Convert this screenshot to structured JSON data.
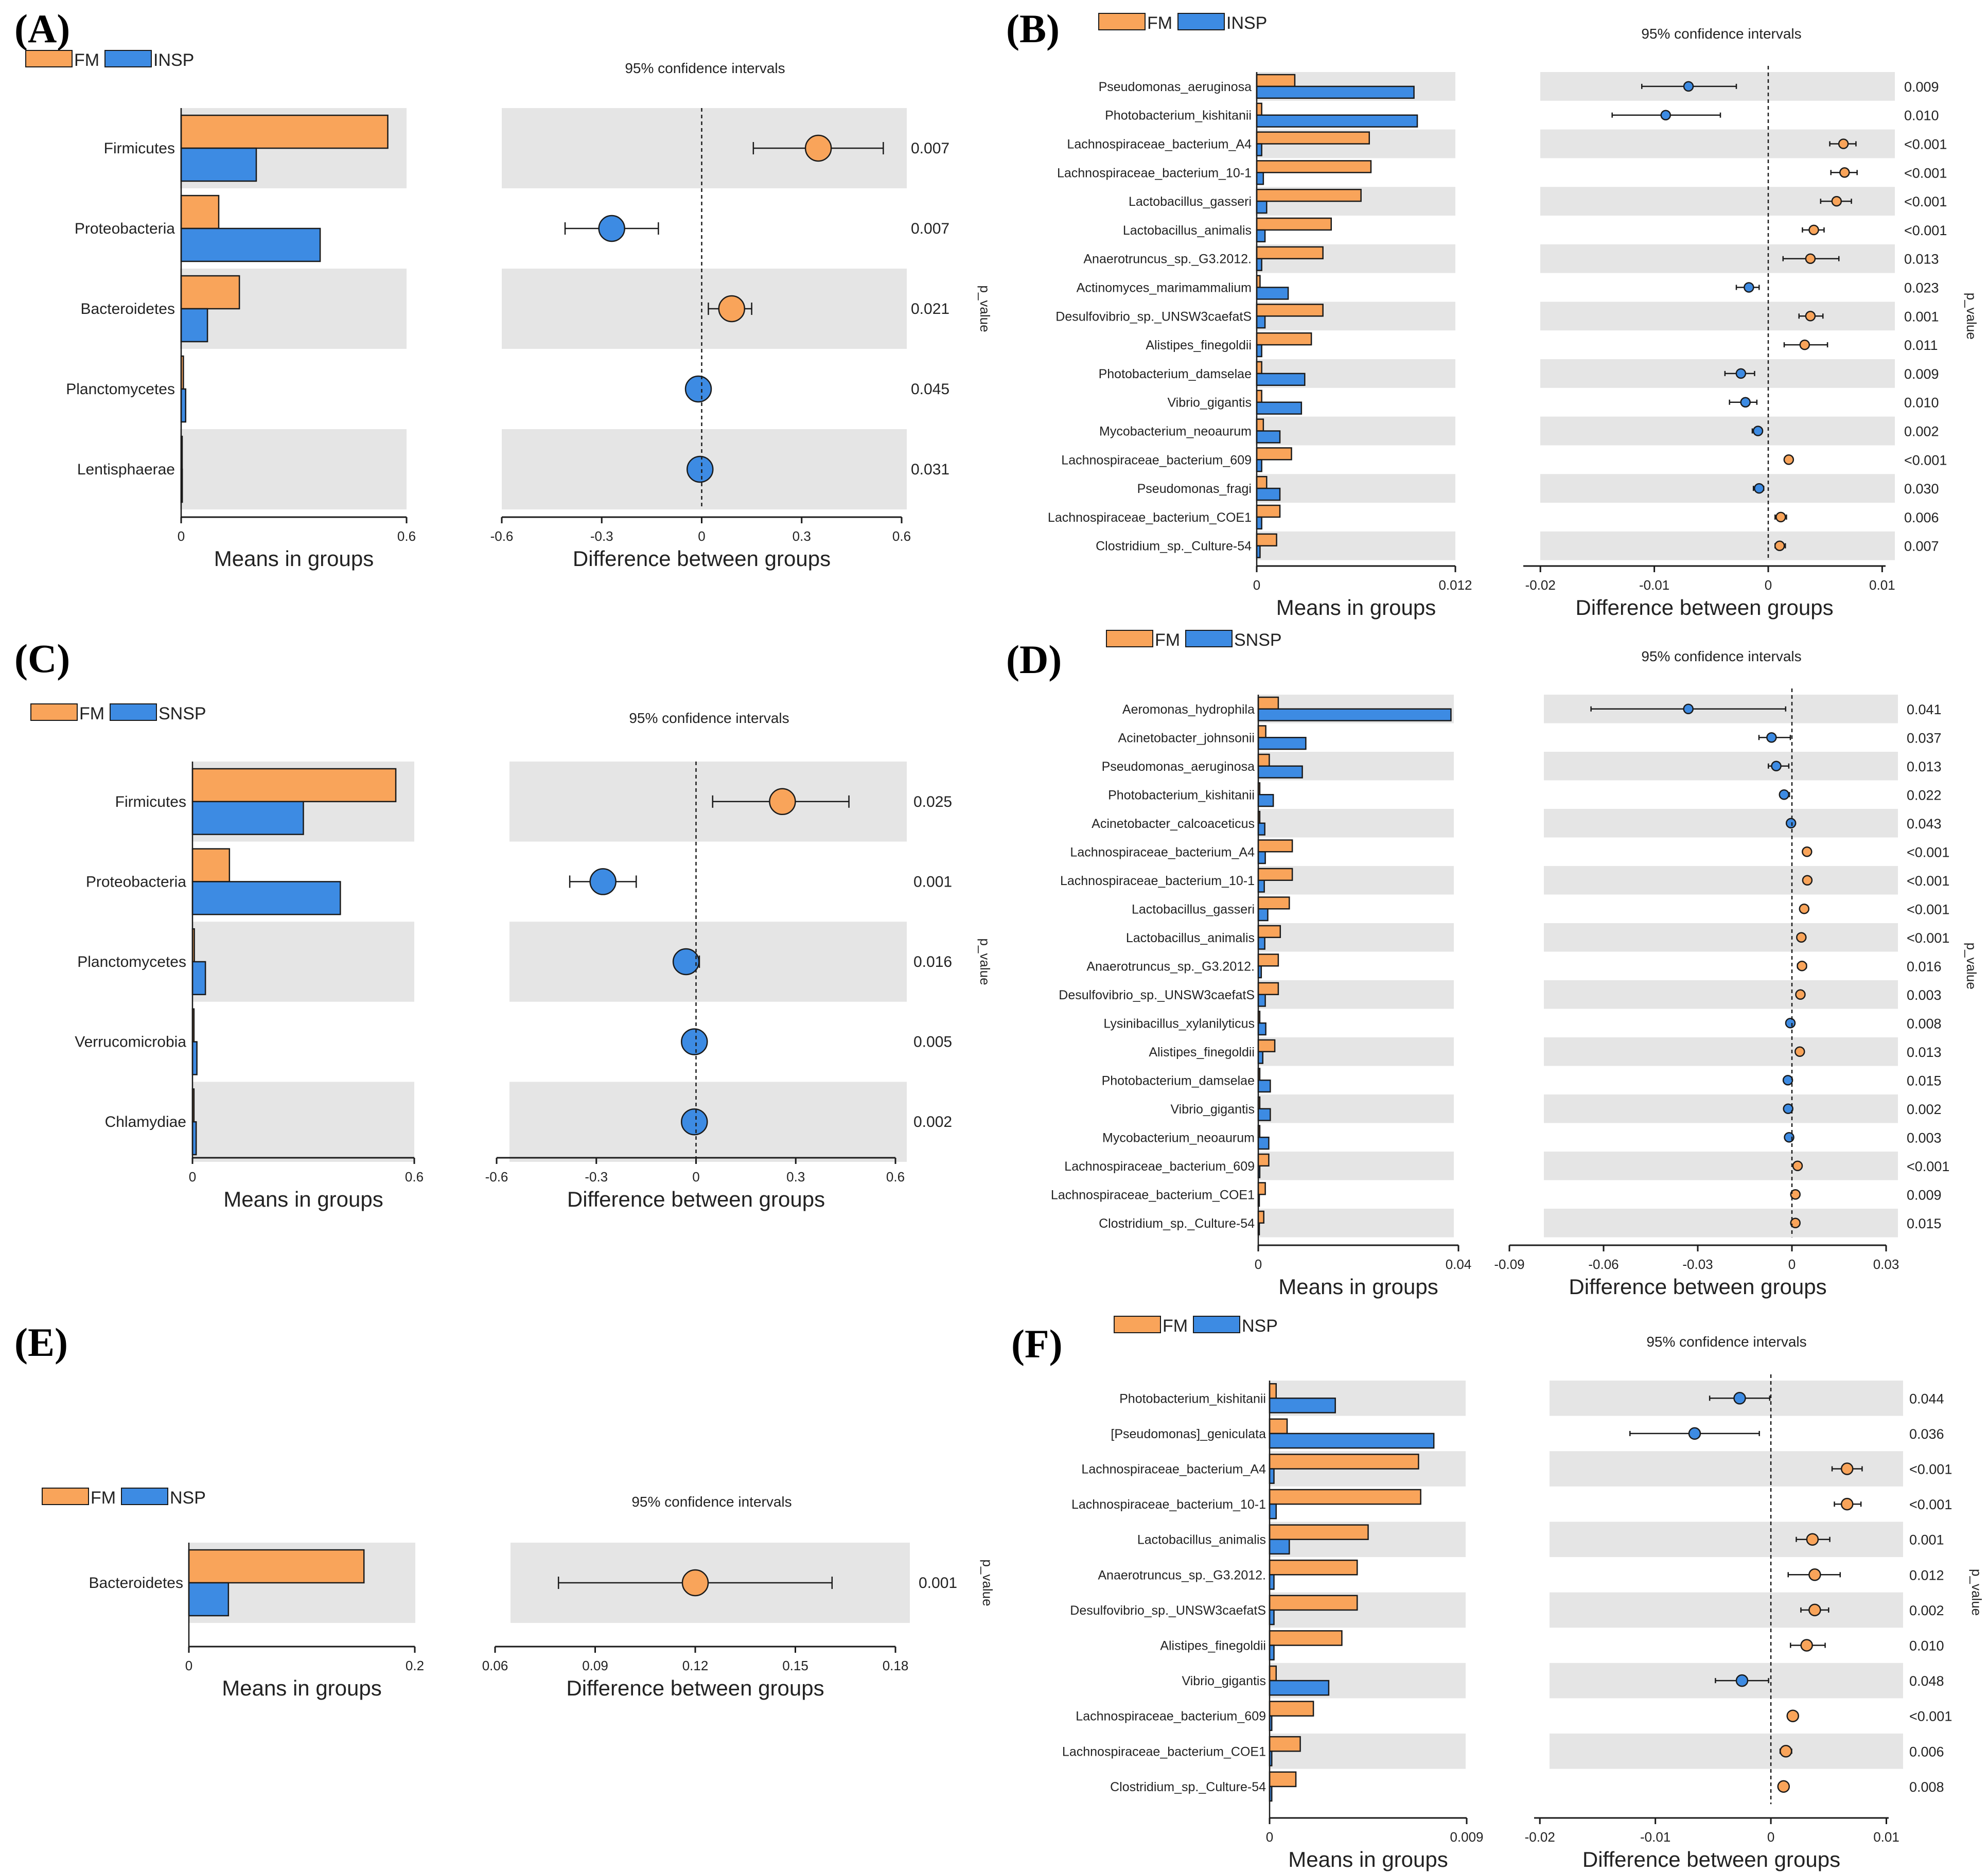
{
  "colors": {
    "fm": "#F9A45A",
    "group": "#3D8BE3",
    "stripe": "#E5E5E5",
    "border": "#1a1a1a"
  },
  "common": {
    "means_axis_title": "Means in groups",
    "diff_axis_title": "Difference between groups",
    "ci_title": "95% confidence intervals",
    "pvalue_label": "p_value"
  },
  "chart_data": [
    {
      "id": "A",
      "label": "(A)",
      "type": "bar",
      "legend": [
        "FM",
        "INSP"
      ],
      "categories": [
        "Firmicutes",
        "Proteobacteria",
        "Bacteroidetes",
        "Planctomycetes",
        "Lentisphaerae"
      ],
      "series": [
        {
          "name": "FM",
          "values": [
            0.55,
            0.1,
            0.155,
            0.006,
            0.002
          ]
        },
        {
          "name": "INSP",
          "values": [
            0.2,
            0.37,
            0.07,
            0.012,
            0.003
          ]
        }
      ],
      "means_ticks": [
        "0",
        "0.6"
      ],
      "means_range": [
        0,
        0.6
      ],
      "diff_range": [
        -0.6,
        0.6
      ],
      "diff_ticks": [
        "-0.6",
        "-0.3",
        "0",
        "0.3",
        "0.6"
      ],
      "diff_tick_values": [
        -0.6,
        -0.3,
        0,
        0.3,
        0.6
      ],
      "diff": [
        0.35,
        -0.27,
        0.09,
        -0.01,
        -0.005
      ],
      "ci": [
        [
          0.155,
          0.545
        ],
        [
          -0.41,
          -0.13
        ],
        [
          0.02,
          0.15
        ],
        [
          -0.03,
          0.01
        ],
        [
          -0.02,
          0.01
        ]
      ],
      "winner": [
        "FM",
        "INSP",
        "FM",
        "INSP",
        "INSP"
      ],
      "p_values": [
        "0.007",
        "0.007",
        "0.021",
        "0.045",
        "0.031"
      ]
    },
    {
      "id": "B",
      "label": "(B)",
      "type": "bar",
      "legend": [
        "FM",
        "INSP"
      ],
      "categories": [
        "Pseudomonas_aeruginosa",
        "Photobacterium_kishitanii",
        "Lachnospiraceae_bacterium_A4",
        "Lachnospiraceae_bacterium_10-1",
        "Lactobacillus_gasseri",
        "Lactobacillus_animalis",
        "Anaerotruncus_sp._G3.2012.",
        "Actinomyces_marimammalium",
        "Desulfovibrio_sp._UNSW3caefatS",
        "Alistipes_finegoldii",
        "Photobacterium_damselae",
        "Vibrio_gigantis",
        "Mycobacterium_neoaurum",
        "Lachnospiraceae_bacterium_609",
        "Pseudomonas_fragi",
        "Lachnospiraceae_bacterium_COE1",
        "Clostridium_sp._Culture-54"
      ],
      "series": [
        {
          "name": "FM",
          "values": [
            0.0023,
            0.0003,
            0.0068,
            0.0069,
            0.0063,
            0.0045,
            0.004,
            0.0002,
            0.004,
            0.0033,
            0.0003,
            0.0003,
            0.0004,
            0.0021,
            0.0006,
            0.0014,
            0.0012
          ]
        },
        {
          "name": "INSP",
          "values": [
            0.0095,
            0.0097,
            0.0003,
            0.0004,
            0.0006,
            0.0005,
            0.0003,
            0.0019,
            0.0005,
            0.0003,
            0.0029,
            0.0027,
            0.0014,
            0.0003,
            0.0014,
            0.0003,
            0.0002
          ]
        }
      ],
      "means_ticks": [
        "0",
        "0.012"
      ],
      "means_range": [
        0,
        0.012
      ],
      "diff_range": [
        -0.0215,
        0.0103
      ],
      "diff_ticks": [
        "-0.02",
        "-0.01",
        "0",
        "0.01"
      ],
      "diff_tick_values": [
        -0.02,
        -0.01,
        0,
        0.01
      ],
      "diff": [
        -0.007,
        -0.009,
        0.0066,
        0.0067,
        0.006,
        0.004,
        0.0037,
        -0.0017,
        0.0037,
        0.0032,
        -0.0024,
        -0.002,
        -0.0009,
        0.0018,
        -0.0008,
        0.0011,
        0.001
      ],
      "ci": [
        [
          -0.0111,
          -0.0028
        ],
        [
          -0.0137,
          -0.0042
        ],
        [
          0.0054,
          0.0077
        ],
        [
          0.0055,
          0.0078
        ],
        [
          0.0046,
          0.0073
        ],
        [
          0.003,
          0.0049
        ],
        [
          0.0013,
          0.0062
        ],
        [
          -0.0028,
          -0.0008
        ],
        [
          0.0027,
          0.0048
        ],
        [
          0.0014,
          0.0052
        ],
        [
          -0.0038,
          -0.0012
        ],
        [
          -0.0034,
          -0.001
        ],
        [
          -0.0014,
          -0.0006
        ],
        [
          0.0015,
          0.0021
        ],
        [
          -0.0013,
          -0.0004
        ],
        [
          0.0006,
          0.0016
        ],
        [
          0.0006,
          0.0015
        ]
      ],
      "winner": [
        "INSP",
        "INSP",
        "FM",
        "FM",
        "FM",
        "FM",
        "FM",
        "INSP",
        "FM",
        "FM",
        "INSP",
        "INSP",
        "INSP",
        "FM",
        "INSP",
        "FM",
        "FM"
      ],
      "p_values": [
        "0.009",
        "0.010",
        "<0.001",
        "<0.001",
        "<0.001",
        "<0.001",
        "0.013",
        "0.023",
        "0.001",
        "0.011",
        "0.009",
        "0.010",
        "0.002",
        "<0.001",
        "0.030",
        "0.006",
        "0.007"
      ]
    },
    {
      "id": "C",
      "label": "(C)",
      "type": "bar",
      "legend": [
        "FM",
        "SNSP"
      ],
      "categories": [
        "Firmicutes",
        "Proteobacteria",
        "Planctomycetes",
        "Verrucomicrobia",
        "Chlamydiae"
      ],
      "series": [
        {
          "name": "FM",
          "values": [
            0.55,
            0.1,
            0.005,
            0.004,
            0.004
          ]
        },
        {
          "name": "SNSP",
          "values": [
            0.3,
            0.4,
            0.035,
            0.012,
            0.01
          ]
        }
      ],
      "means_ticks": [
        "0",
        "0.6"
      ],
      "means_range": [
        0,
        0.6
      ],
      "diff_range": [
        -0.6,
        0.6
      ],
      "diff_ticks": [
        "-0.6",
        "-0.3",
        "0",
        "0.3",
        "0.6"
      ],
      "diff_tick_values": [
        -0.6,
        -0.3,
        0,
        0.3,
        0.6
      ],
      "diff": [
        0.26,
        -0.28,
        -0.03,
        -0.005,
        -0.005
      ],
      "ci": [
        [
          0.05,
          0.46
        ],
        [
          -0.38,
          -0.18
        ],
        [
          -0.05,
          0.01
        ],
        [
          -0.02,
          0.02
        ],
        [
          -0.02,
          0.02
        ]
      ],
      "winner": [
        "FM",
        "SNSP",
        "SNSP",
        "SNSP",
        "SNSP"
      ],
      "p_values": [
        "0.025",
        "0.001",
        "0.016",
        "0.005",
        "0.002"
      ]
    },
    {
      "id": "D",
      "label": "(D)",
      "type": "bar",
      "legend": [
        "FM",
        "SNSP"
      ],
      "categories": [
        "Aeromonas_hydrophila",
        "Acinetobacter_johnsonii",
        "Pseudomonas_aeruginosa",
        "Photobacterium_kishitanii",
        "Acinetobacter_calcoaceticus",
        "Lachnospiraceae_bacterium_A4",
        "Lachnospiraceae_bacterium_10-1",
        "Lactobacillus_gasseri",
        "Lactobacillus_animalis",
        "Anaerotruncus_sp._G3.2012.",
        "Desulfovibrio_sp._UNSW3caefatS",
        "Lysinibacillus_xylanilyticus",
        "Alistipes_finegoldii",
        "Photobacterium_damselae",
        "Vibrio_gigantis",
        "Mycobacterium_neoaurum",
        "Lachnospiraceae_bacterium_609",
        "Lachnospiraceae_bacterium_COE1",
        "Clostridium_sp._Culture-54"
      ],
      "series": [
        {
          "name": "FM",
          "values": [
            0.004,
            0.0015,
            0.0022,
            0.0003,
            0.0003,
            0.0068,
            0.0068,
            0.0062,
            0.0044,
            0.004,
            0.004,
            0.0003,
            0.0033,
            0.0003,
            0.0003,
            0.0003,
            0.0021,
            0.0014,
            0.0011
          ]
        },
        {
          "name": "SNSP",
          "values": [
            0.0385,
            0.0095,
            0.0088,
            0.003,
            0.0013,
            0.0014,
            0.0012,
            0.0019,
            0.0013,
            0.0006,
            0.0014,
            0.0015,
            0.0009,
            0.0024,
            0.0024,
            0.0021,
            0.0003,
            0.0002,
            0.0002
          ]
        }
      ],
      "means_ticks": [
        "0",
        "0.04"
      ],
      "means_range": [
        0,
        0.04
      ],
      "diff_range": [
        -0.09,
        0.03
      ],
      "diff_ticks": [
        "-0.09",
        "-0.06",
        "-0.03",
        "0",
        "0.03"
      ],
      "diff_tick_values": [
        -0.09,
        -0.06,
        -0.03,
        0,
        0.03
      ],
      "diff": [
        -0.033,
        -0.0065,
        -0.005,
        -0.0025,
        -0.0003,
        0.0048,
        0.0049,
        0.0039,
        0.003,
        0.0032,
        0.0027,
        -0.0005,
        0.0025,
        -0.0013,
        -0.0012,
        -0.0009,
        0.0018,
        0.0011,
        0.0011
      ],
      "ci": [
        [
          -0.064,
          -0.002
        ],
        [
          -0.0105,
          -0.0005
        ],
        [
          -0.0075,
          -0.001
        ],
        [
          -0.0038,
          -0.0008
        ],
        [
          -0.001,
          0.0004
        ],
        [
          0.0037,
          0.0059
        ],
        [
          0.0038,
          0.006
        ],
        [
          0.003,
          0.0048
        ],
        [
          0.002,
          0.004
        ],
        [
          0.0018,
          0.0046
        ],
        [
          0.0017,
          0.0037
        ],
        [
          -0.0012,
          0.0002
        ],
        [
          0.0016,
          0.0034
        ],
        [
          -0.002,
          -0.0006
        ],
        [
          -0.0019,
          -0.0005
        ],
        [
          -0.0016,
          -0.0002
        ],
        [
          0.0013,
          0.0023
        ],
        [
          0.0006,
          0.0016
        ],
        [
          0.0006,
          0.0016
        ]
      ],
      "winner": [
        "SNSP",
        "SNSP",
        "SNSP",
        "SNSP",
        "SNSP",
        "FM",
        "FM",
        "FM",
        "FM",
        "FM",
        "FM",
        "SNSP",
        "FM",
        "SNSP",
        "SNSP",
        "SNSP",
        "FM",
        "FM",
        "FM"
      ],
      "p_values": [
        "0.041",
        "0.037",
        "0.013",
        "0.022",
        "0.043",
        "<0.001",
        "<0.001",
        "<0.001",
        "<0.001",
        "0.016",
        "0.003",
        "0.008",
        "0.013",
        "0.015",
        "0.002",
        "0.003",
        "<0.001",
        "0.009",
        "0.015"
      ]
    },
    {
      "id": "E",
      "label": "(E)",
      "type": "bar",
      "legend": [
        "FM",
        "NSP"
      ],
      "categories": [
        "Bacteroidetes"
      ],
      "series": [
        {
          "name": "FM",
          "values": [
            0.155
          ]
        },
        {
          "name": "NSP",
          "values": [
            0.035
          ]
        }
      ],
      "means_ticks": [
        "0",
        "0.2"
      ],
      "means_range": [
        0,
        0.2
      ],
      "diff_range": [
        0.06,
        0.18
      ],
      "diff_ticks": [
        "0.06",
        "0.09",
        "0.12",
        "0.15",
        "0.18"
      ],
      "diff_tick_values": [
        0.06,
        0.09,
        0.12,
        0.15,
        0.18
      ],
      "diff": [
        0.12
      ],
      "ci": [
        [
          0.079,
          0.161
        ]
      ],
      "winner": [
        "FM"
      ],
      "p_values": [
        "0.001"
      ]
    },
    {
      "id": "F",
      "label": "(F)",
      "type": "bar",
      "legend": [
        "FM",
        "NSP"
      ],
      "categories": [
        "Photobacterium_kishitanii",
        "[Pseudomonas]_geniculata",
        "Lachnospiraceae_bacterium_A4",
        "Lachnospiraceae_bacterium_10-1",
        "Lactobacillus_animalis",
        "Anaerotruncus_sp._G3.2012.",
        "Desulfovibrio_sp._UNSW3caefatS",
        "Alistipes_finegoldii",
        "Vibrio_gigantis",
        "Lachnospiraceae_bacterium_609",
        "Lachnospiraceae_bacterium_COE1",
        "Clostridium_sp._Culture-54"
      ],
      "series": [
        {
          "name": "FM",
          "values": [
            0.0003,
            0.0008,
            0.0068,
            0.0069,
            0.0045,
            0.004,
            0.004,
            0.0033,
            0.0003,
            0.002,
            0.0014,
            0.0012
          ]
        },
        {
          "name": "NSP",
          "values": [
            0.003,
            0.0075,
            0.0002,
            0.0003,
            0.0009,
            0.0002,
            0.0002,
            0.0002,
            0.0027,
            0.0001,
            0.0001,
            0.0001
          ]
        }
      ],
      "means_ticks": [
        "0",
        "0.009"
      ],
      "means_range": [
        0,
        0.009
      ],
      "diff_range": [
        -0.0205,
        0.0102
      ],
      "diff_ticks": [
        "-0.02",
        "-0.01",
        "0",
        "0.01"
      ],
      "diff_tick_values": [
        -0.02,
        -0.01,
        0,
        0.01
      ],
      "diff": [
        -0.0027,
        -0.0066,
        0.0066,
        0.0066,
        0.0036,
        0.0038,
        0.0038,
        0.0031,
        -0.0025,
        0.0019,
        0.0013,
        0.0011
      ],
      "ci": [
        [
          -0.0053,
          -0.0001
        ],
        [
          -0.0122,
          -0.001
        ],
        [
          0.0053,
          0.0079
        ],
        [
          0.0055,
          0.0078
        ],
        [
          0.0022,
          0.0051
        ],
        [
          0.0015,
          0.006
        ],
        [
          0.0026,
          0.005
        ],
        [
          0.0017,
          0.0047
        ],
        [
          -0.0048,
          -0.0002
        ],
        [
          0.0016,
          0.0022
        ],
        [
          0.0008,
          0.0018
        ],
        [
          0.0007,
          0.0015
        ]
      ],
      "winner": [
        "NSP",
        "NSP",
        "FM",
        "FM",
        "FM",
        "FM",
        "FM",
        "FM",
        "NSP",
        "FM",
        "FM",
        "FM"
      ],
      "p_values": [
        "0.044",
        "0.036",
        "<0.001",
        "<0.001",
        "0.001",
        "0.012",
        "0.002",
        "0.010",
        "0.048",
        "<0.001",
        "0.006",
        "0.008"
      ]
    }
  ]
}
